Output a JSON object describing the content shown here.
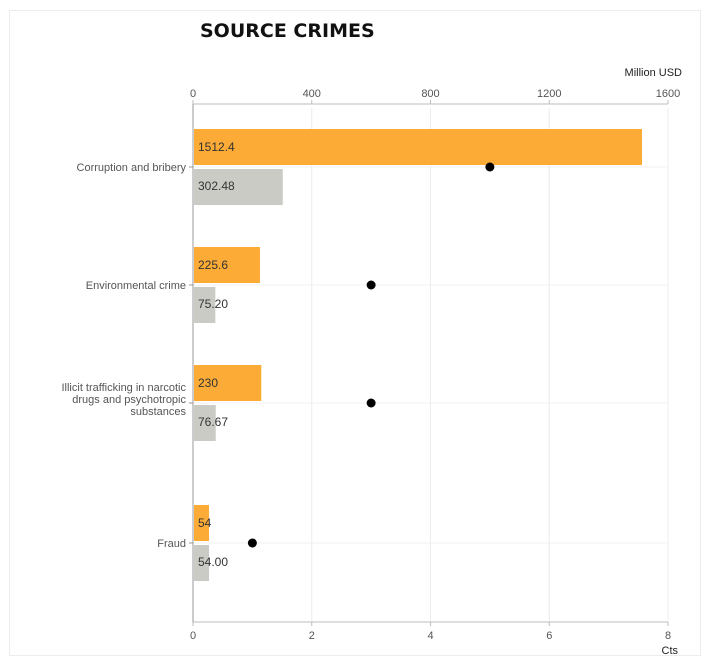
{
  "chart_data": {
    "type": "bar",
    "orientation": "horizontal",
    "title": "SOURCE CRIMES",
    "categories": [
      "Corruption and bribery",
      "Environmental crime",
      "Illicit trafficking in narcotic drugs and psychotropic substances",
      "Fraud"
    ],
    "category_lines": [
      [
        "Corruption and bribery"
      ],
      [
        "Environmental crime"
      ],
      [
        "Illicit trafficking in narcotic",
        "drugs and psychotropic",
        "substances"
      ],
      [
        "Fraud"
      ]
    ],
    "series": [
      {
        "axis": "top",
        "color": "#fbab36",
        "values": [
          1512.4,
          225.6,
          230,
          54
        ],
        "labels": [
          "1512.4",
          "225.6",
          "230",
          "54"
        ]
      },
      {
        "axis": "top",
        "color": "#cbcbc6",
        "values": [
          302.48,
          75.2,
          76.67,
          54
        ],
        "labels": [
          "302.48",
          "75.20",
          "76.67",
          "54.00"
        ]
      },
      {
        "axis": "bottom",
        "type": "scatter",
        "color": "#000000",
        "values": [
          5,
          3,
          3,
          1
        ]
      }
    ],
    "top_axis": {
      "unit_label": "Million USD",
      "range": [
        0,
        1600
      ],
      "ticks": [
        "0",
        "400",
        "800",
        "1200",
        "1600"
      ]
    },
    "bottom_axis": {
      "unit_label": "Cts",
      "range": [
        0,
        8
      ],
      "ticks": [
        "0",
        "2",
        "4",
        "6",
        "8"
      ]
    },
    "grid": true,
    "legend": "none"
  }
}
